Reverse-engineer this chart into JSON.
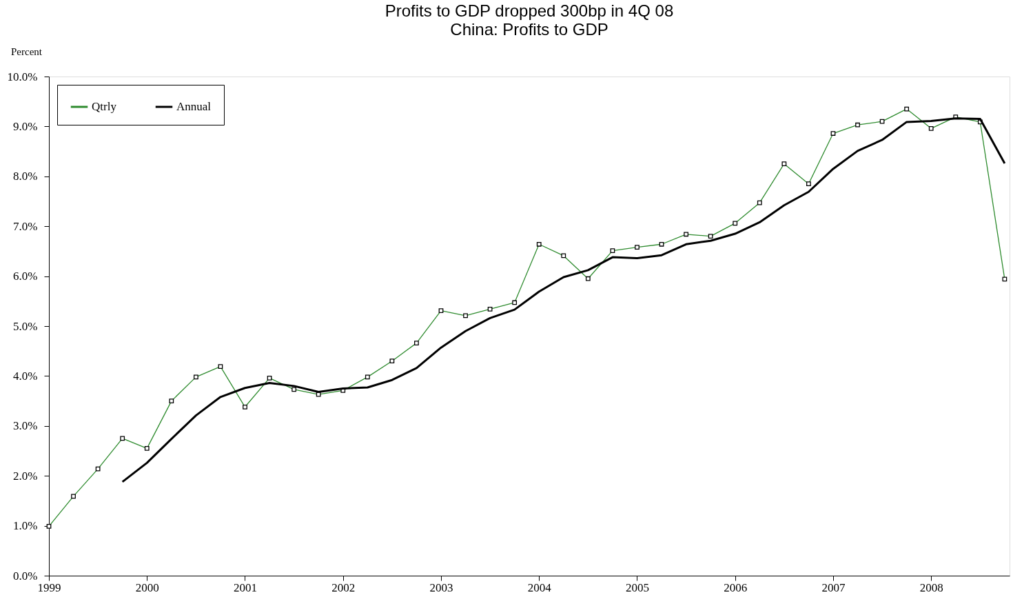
{
  "chart_data": {
    "type": "line",
    "title": "Profits to GDP dropped 300bp in 4Q 08",
    "subtitle": "China: Profits to GDP",
    "ylabel": "Percent",
    "xlim": [
      1999,
      2008.8
    ],
    "xticks": [
      1999,
      2000,
      2001,
      2002,
      2003,
      2004,
      2005,
      2006,
      2007,
      2008
    ],
    "ylim": [
      0,
      10
    ],
    "yticks": [
      {
        "value": 0,
        "label": "0.0%"
      },
      {
        "value": 1,
        "label": "1.0%"
      },
      {
        "value": 2,
        "label": "2.0%"
      },
      {
        "value": 3,
        "label": "3.0%"
      },
      {
        "value": 4,
        "label": "4.0%"
      },
      {
        "value": 5,
        "label": "5.0%"
      },
      {
        "value": 6,
        "label": "6.0%"
      },
      {
        "value": 7,
        "label": "7.0%"
      },
      {
        "value": 8,
        "label": "8.0%"
      },
      {
        "value": 9,
        "label": "9.0%"
      },
      {
        "value": 10,
        "label": "10.0%"
      }
    ],
    "grid": false,
    "legend": "top left",
    "line_style": "solid",
    "series": [
      {
        "name": "Qtrly",
        "color": "#2e8b2e",
        "marker": "square",
        "x": [
          1999,
          1999.25,
          1999.5,
          1999.75,
          2000,
          2000.25,
          2000.5,
          2000.75,
          2001,
          2001.25,
          2001.5,
          2001.75,
          2002,
          2002.25,
          2002.5,
          2002.75,
          2003,
          2003.25,
          2003.5,
          2003.75,
          2004,
          2004.25,
          2004.5,
          2004.75,
          2005,
          2005.25,
          2005.5,
          2005.75,
          2006,
          2006.25,
          2006.5,
          2006.75,
          2007,
          2007.25,
          2007.5,
          2007.75,
          2008,
          2008.25,
          2008.5,
          2008.75
        ],
        "values": [
          0.99,
          1.59,
          2.14,
          2.75,
          2.55,
          3.5,
          3.98,
          4.19,
          3.38,
          3.96,
          3.73,
          3.63,
          3.71,
          3.98,
          4.3,
          4.66,
          5.31,
          5.21,
          5.34,
          5.47,
          6.64,
          6.41,
          5.95,
          6.51,
          6.58,
          6.64,
          6.84,
          6.8,
          7.06,
          7.47,
          8.25,
          7.85,
          8.86,
          9.03,
          9.1,
          9.35,
          8.96,
          9.19,
          9.09,
          5.94
        ]
      },
      {
        "name": "Annual",
        "color": "#000000",
        "marker": "none",
        "x": [
          1999.75,
          2000,
          2000.25,
          2000.5,
          2000.75,
          2001,
          2001.25,
          2001.5,
          2001.75,
          2002,
          2002.25,
          2002.5,
          2002.75,
          2003,
          2003.25,
          2003.5,
          2003.75,
          2004,
          2004.25,
          2004.5,
          2004.75,
          2005,
          2005.25,
          2005.5,
          2005.75,
          2006,
          2006.25,
          2006.5,
          2006.75,
          2007,
          2007.25,
          2007.5,
          2007.75,
          2008,
          2008.25,
          2008.5,
          2008.75
        ],
        "values": [
          1.88,
          2.26,
          2.74,
          3.21,
          3.58,
          3.76,
          3.86,
          3.8,
          3.68,
          3.75,
          3.77,
          3.92,
          4.16,
          4.57,
          4.9,
          5.16,
          5.33,
          5.69,
          5.98,
          6.12,
          6.38,
          6.36,
          6.42,
          6.64,
          6.71,
          6.85,
          7.08,
          7.42,
          7.69,
          8.15,
          8.51,
          8.73,
          9.09,
          9.11,
          9.16,
          9.15,
          8.26
        ]
      }
    ]
  }
}
